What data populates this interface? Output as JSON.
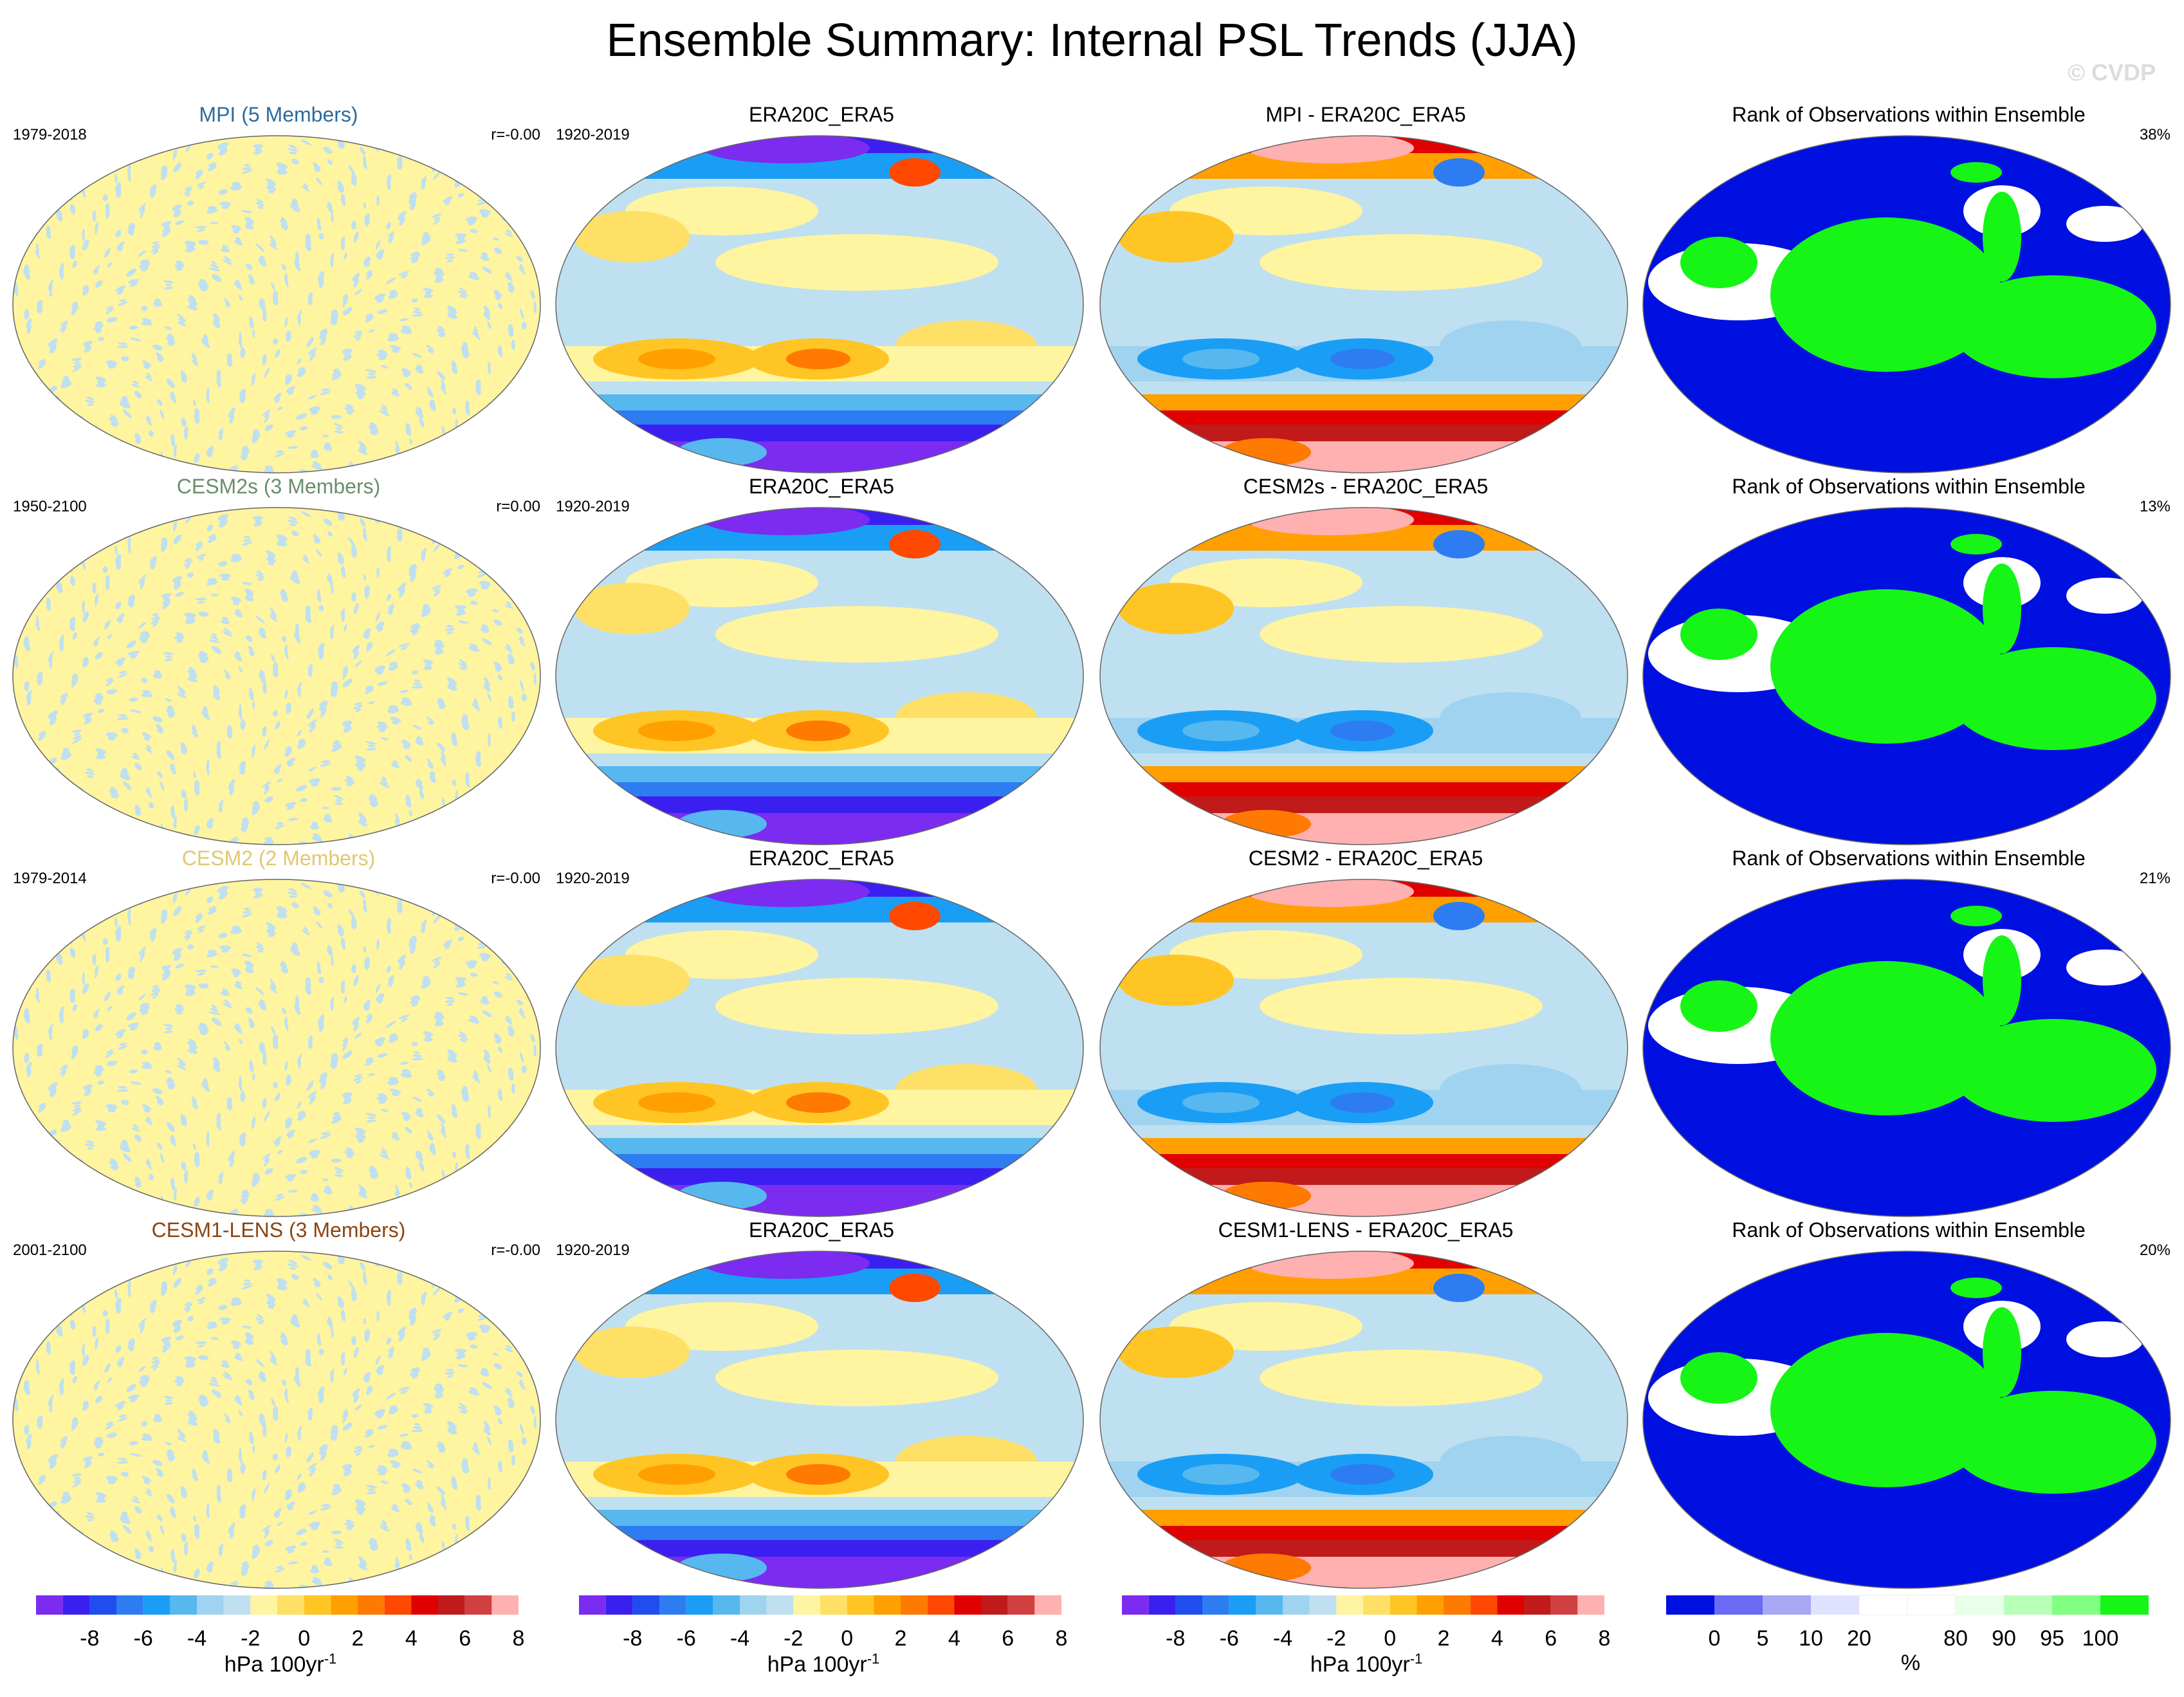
{
  "title": "Ensemble Summary: Internal PSL Trends (JJA)",
  "watermark": "© CVDP",
  "colors": {
    "diverging": [
      "#7b2cf0",
      "#3a1ff0",
      "#1f4df0",
      "#2e7cf2",
      "#1a9ef5",
      "#56b8ef",
      "#9fd3ef",
      "#bfe0f0",
      "#fff4a0",
      "#ffe066",
      "#ffc524",
      "#ffa000",
      "#ff7a00",
      "#ff4800",
      "#e00000",
      "#c01a1a",
      "#d04040",
      "#ffb0b0"
    ],
    "rank": [
      "#0010e0",
      "#6a6af5",
      "#a8a8f5",
      "#e0e0ff",
      "#ffffff",
      "#ffffff",
      "#e8ffe8",
      "#b8ffb8",
      "#80ff80",
      "#16f516"
    ],
    "model_mpi": "#2b6ca0",
    "model_cesm2s": "#6b8e6b",
    "model_cesm2": "#e0c870",
    "model_cesm1": "#8b4513"
  },
  "rows": [
    {
      "model_title": "MPI (5 Members)",
      "model_color_key": "model_mpi",
      "model_period": "1979-2018",
      "model_r": "r=-0.00",
      "obs_title": "ERA20C_ERA5",
      "obs_period": "1920-2019",
      "diff_title": "MPI - ERA20C_ERA5",
      "rank_title": "Rank of Observations within Ensemble",
      "rank_pct": "38%"
    },
    {
      "model_title": "CESM2s (3 Members)",
      "model_color_key": "model_cesm2s",
      "model_period": "1950-2100",
      "model_r": "r=0.00",
      "obs_title": "ERA20C_ERA5",
      "obs_period": "1920-2019",
      "diff_title": "CESM2s - ERA20C_ERA5",
      "rank_title": "Rank of Observations within Ensemble",
      "rank_pct": "13%"
    },
    {
      "model_title": "CESM2 (2 Members)",
      "model_color_key": "model_cesm2",
      "model_period": "1979-2014",
      "model_r": "r=-0.00",
      "obs_title": "ERA20C_ERA5",
      "obs_period": "1920-2019",
      "diff_title": "CESM2 - ERA20C_ERA5",
      "rank_title": "Rank of Observations within Ensemble",
      "rank_pct": "21%"
    },
    {
      "model_title": "CESM1-LENS (3 Members)",
      "model_color_key": "model_cesm1",
      "model_period": "2001-2100",
      "model_r": "r=-0.00",
      "obs_title": "ERA20C_ERA5",
      "obs_period": "1920-2019",
      "diff_title": "CESM1-LENS - ERA20C_ERA5",
      "rank_title": "Rank of Observations within Ensemble",
      "rank_pct": "20%"
    }
  ],
  "colorbars": {
    "trend": {
      "ticks": [
        "-8",
        "-6",
        "-4",
        "-2",
        "0",
        "2",
        "4",
        "6",
        "8"
      ],
      "label": "hPa 100yr",
      "label_sup": "-1"
    },
    "rank": {
      "ticks": [
        "0",
        "5",
        "10",
        "20",
        "80",
        "90",
        "95",
        "100"
      ],
      "label": "%"
    }
  }
}
